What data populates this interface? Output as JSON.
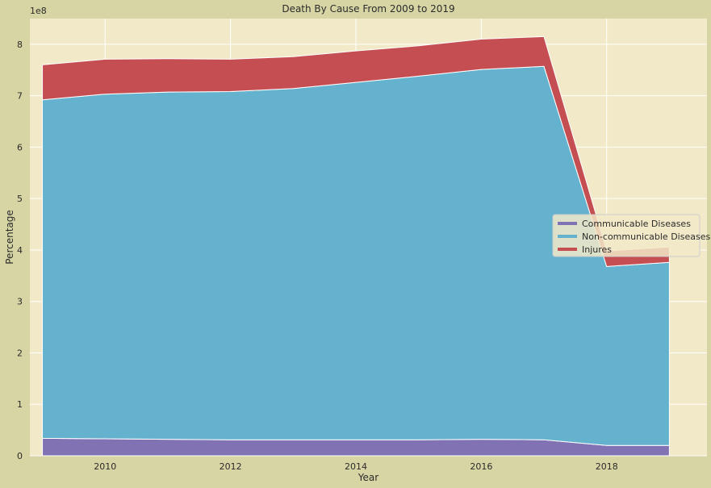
{
  "chart_data": {
    "type": "area",
    "stacked": true,
    "title": "Death By Cause From 2009 to 2019",
    "xlabel": "Year",
    "ylabel": "Percentage",
    "y_offset_text": "1e8",
    "y_scale_multiplier": 100000000,
    "x": [
      2009,
      2010,
      2011,
      2012,
      2013,
      2014,
      2015,
      2016,
      2017,
      2018,
      2019
    ],
    "series": [
      {
        "name": "Communicable Diseases",
        "color": "#8172b3",
        "values": [
          0.34,
          0.33,
          0.32,
          0.31,
          0.31,
          0.31,
          0.31,
          0.32,
          0.31,
          0.2,
          0.2
        ]
      },
      {
        "name": "Non-communicable Diseases",
        "color": "#64b2cd",
        "values": [
          6.58,
          6.7,
          6.75,
          6.77,
          6.83,
          6.95,
          7.07,
          7.19,
          7.26,
          3.48,
          3.56
        ]
      },
      {
        "name": "Injures",
        "color": "#c44e52",
        "values": [
          0.68,
          0.68,
          0.65,
          0.63,
          0.62,
          0.61,
          0.59,
          0.59,
          0.58,
          0.3,
          0.3
        ]
      }
    ],
    "xlim": [
      2008.8,
      2019.6
    ],
    "ylim": [
      0,
      8.5
    ],
    "xticks": [
      2010,
      2012,
      2014,
      2016,
      2018
    ],
    "yticks": [
      0,
      1,
      2,
      3,
      4,
      5,
      6,
      7,
      8
    ],
    "grid": true,
    "legend_position": "center-right",
    "plot_background": "#f2e9c8",
    "figure_background": "#d8d5a5"
  }
}
